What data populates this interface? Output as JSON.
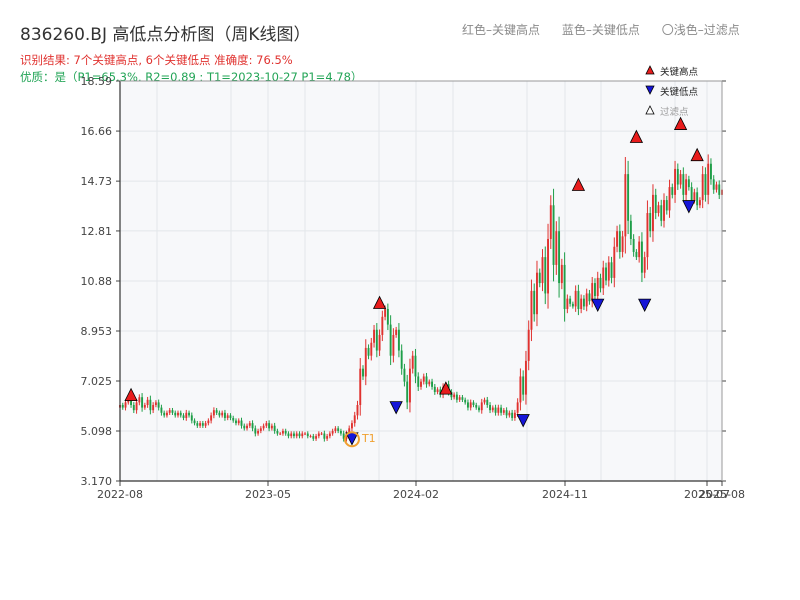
{
  "header": {
    "title": "836260.BJ 高低点分析图（周K线图）",
    "result_line": "识别结果: 7个关键高点, 6个关键低点   准确度: 76.5%",
    "quality_line": "优质：是（P1=65.3%, R2=0.89 ; T1=2023-10-27 P1=4.78）"
  },
  "top_legend": {
    "red": "红色–关键高点",
    "blue": "蓝色–关键低点",
    "light": "〇浅色–过滤点"
  },
  "legend": {
    "high": "关键高点",
    "low": "关键低点",
    "filtered": "过滤点",
    "placement": "top-right"
  },
  "colors": {
    "up": "#e0322f",
    "down": "#1e9e48",
    "high_marker": "#e81c1c",
    "low_marker": "#1616d8",
    "t1_marker": "#f0a030",
    "grid": "#e3e6ea",
    "plot_bg": "#f7f8fa"
  },
  "chart_data": {
    "type": "candlestick",
    "x_ticks": [
      "2022-08",
      "2023-05",
      "2024-02",
      "2024-11",
      "2025-07",
      "2025-08"
    ],
    "y_ticks": [
      3.17,
      5.098,
      7.025,
      8.953,
      10.88,
      12.81,
      14.73,
      16.66,
      18.59
    ],
    "y_tick_labels": [
      "3.170",
      "5.098",
      "7.025",
      "8.953",
      "10.88",
      "12.81",
      "14.73",
      "16.66",
      "18.59"
    ],
    "ylim": [
      3.17,
      18.59
    ],
    "grid": true,
    "weekly_close": [
      6.1,
      6.0,
      6.2,
      6.3,
      6.1,
      5.9,
      6.2,
      6.4,
      6.0,
      6.1,
      6.3,
      5.9,
      6.1,
      6.2,
      6.0,
      5.8,
      5.7,
      5.8,
      5.9,
      5.8,
      5.7,
      5.8,
      5.7,
      5.6,
      5.8,
      5.7,
      5.5,
      5.4,
      5.3,
      5.4,
      5.3,
      5.4,
      5.5,
      5.7,
      5.9,
      5.8,
      5.7,
      5.8,
      5.6,
      5.7,
      5.6,
      5.5,
      5.4,
      5.5,
      5.3,
      5.2,
      5.3,
      5.4,
      5.2,
      5.0,
      5.1,
      5.2,
      5.3,
      5.4,
      5.2,
      5.3,
      5.1,
      5.0,
      5.0,
      5.1,
      5.0,
      4.9,
      5.0,
      4.9,
      5.0,
      4.9,
      5.0,
      5.0,
      4.9,
      4.9,
      4.8,
      4.9,
      5.0,
      5.0,
      4.8,
      4.9,
      5.0,
      5.1,
      5.2,
      5.1,
      5.0,
      4.8,
      5.0,
      5.2,
      5.4,
      5.7,
      6.1,
      7.5,
      7.2,
      8.3,
      8.0,
      8.5,
      9.0,
      8.2,
      8.8,
      9.5,
      9.8,
      9.2,
      8.0,
      8.8,
      9.0,
      8.2,
      7.5,
      7.0,
      6.2,
      7.5,
      8.0,
      7.2,
      6.8,
      7.0,
      7.2,
      6.9,
      7.0,
      6.8,
      6.6,
      6.7,
      6.5,
      6.8,
      6.9,
      6.6,
      6.4,
      6.5,
      6.3,
      6.4,
      6.3,
      6.2,
      6.0,
      6.2,
      6.1,
      6.0,
      5.9,
      6.2,
      6.3,
      6.1,
      5.9,
      6.0,
      5.8,
      6.0,
      5.8,
      5.9,
      5.7,
      5.8,
      5.6,
      5.8,
      6.2,
      7.2,
      6.5,
      7.8,
      9.0,
      10.5,
      9.6,
      11.2,
      10.8,
      11.8,
      10.4,
      12.5,
      13.8,
      11.5,
      12.8,
      10.8,
      11.5,
      9.8,
      10.2,
      10.0,
      9.9,
      10.5,
      9.8,
      10.2,
      9.9,
      10.4,
      10.1,
      10.8,
      10.3,
      11.0,
      10.6,
      11.4,
      10.9,
      11.6,
      11.0,
      12.2,
      12.8,
      12.0,
      12.6,
      15.0,
      13.2,
      12.5,
      12.0,
      11.8,
      12.4,
      11.2,
      11.8,
      13.5,
      12.8,
      14.2,
      13.5,
      13.8,
      13.2,
      14.0,
      13.6,
      14.5,
      14.2,
      15.2,
      14.6,
      15.0,
      14.2,
      14.8,
      14.5,
      14.0,
      14.3,
      13.8,
      14.0,
      15.0,
      14.2,
      15.4,
      14.8,
      14.4,
      14.6,
      14.2,
      14.4
    ],
    "key_highs": [
      {
        "week": 4,
        "price": 6.5
      },
      {
        "week": 94,
        "price": 10.05
      },
      {
        "week": 118,
        "price": 6.75
      },
      {
        "week": 166,
        "price": 14.6
      },
      {
        "week": 187,
        "price": 16.45
      },
      {
        "week": 203,
        "price": 16.95
      },
      {
        "week": 209,
        "price": 15.75
      }
    ],
    "key_lows": [
      {
        "week": 84,
        "price": 4.8
      },
      {
        "week": 100,
        "price": 6.0
      },
      {
        "week": 146,
        "price": 5.5
      },
      {
        "week": 173,
        "price": 9.95
      },
      {
        "week": 190,
        "price": 9.95
      },
      {
        "week": 206,
        "price": 13.75
      }
    ],
    "t1": {
      "week": 84,
      "price": 4.78,
      "label": "T1"
    }
  }
}
